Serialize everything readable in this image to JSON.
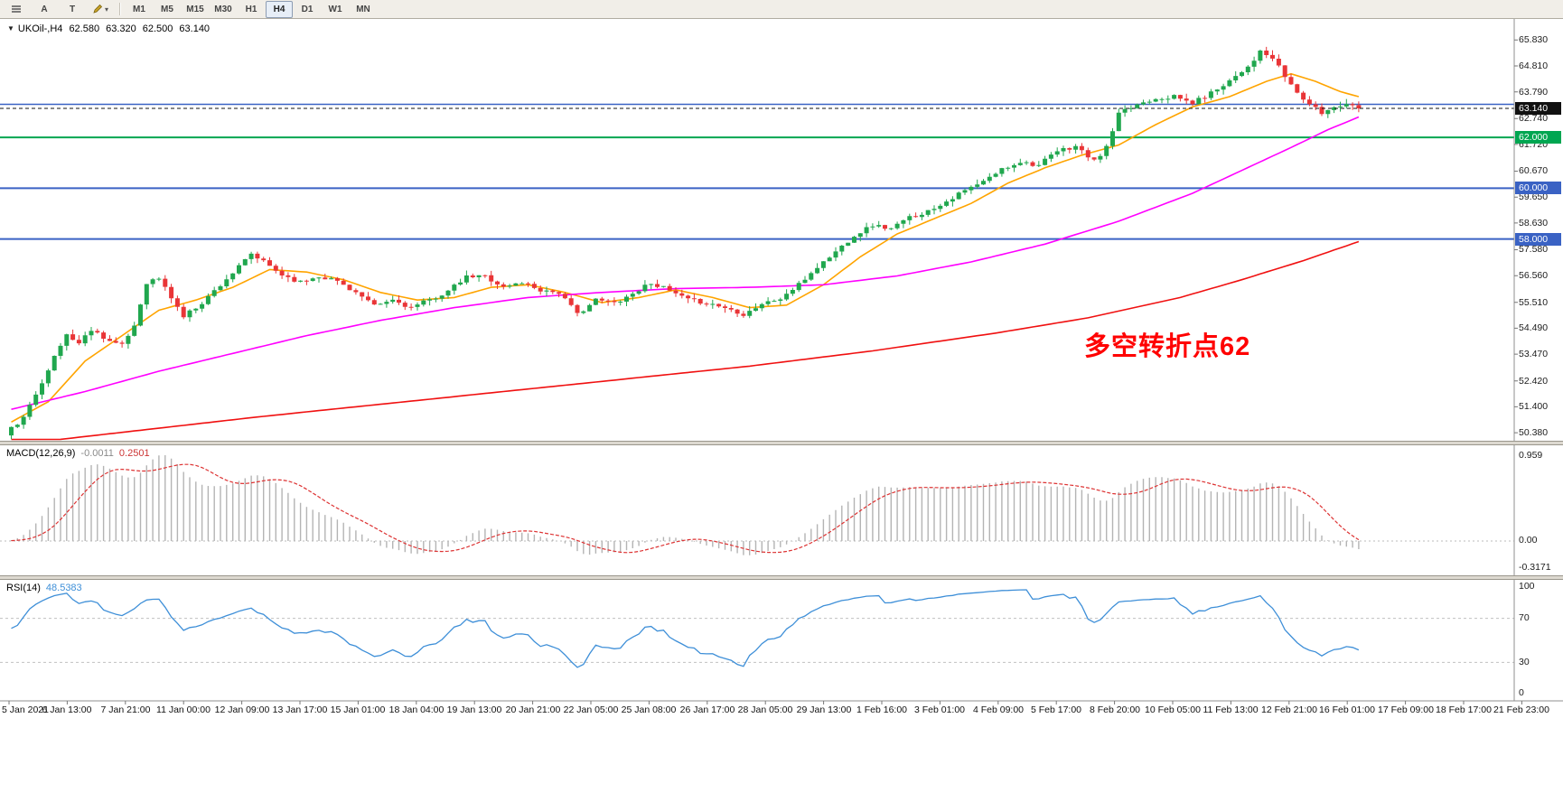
{
  "toolbar": {
    "tools": [
      {
        "label": "A"
      },
      {
        "label": "T"
      }
    ],
    "timeframes": [
      "M1",
      "M5",
      "M15",
      "M30",
      "H1",
      "H4",
      "D1",
      "W1",
      "MN"
    ],
    "active_timeframe": "H4"
  },
  "chart_title": {
    "symbol_period": "UKOil-,H4",
    "open": "62.580",
    "high": "63.320",
    "low": "62.500",
    "close": "63.140"
  },
  "annotation": "多空转折点62",
  "chart_data": {
    "type": "candlestick",
    "symbol": "UKOil",
    "timeframe": "H4",
    "price_range": {
      "max": 66.55,
      "min": 50.1
    },
    "price_axis_labels": [
      "65.830",
      "64.810",
      "63.790",
      "62.740",
      "61.720",
      "60.670",
      "59.650",
      "58.630",
      "57.580",
      "56.560",
      "55.510",
      "54.490",
      "53.470",
      "52.420",
      "51.400",
      "50.380"
    ],
    "hlines": [
      {
        "price": 63.3,
        "color": "#3A62C4",
        "width": 1.5,
        "tag": null
      },
      {
        "price": 62.0,
        "color": "#00A651",
        "width": 2,
        "tag": "62.000"
      },
      {
        "price": 60.0,
        "color": "#3A62C4",
        "width": 2,
        "tag": "60.000"
      },
      {
        "price": 58.0,
        "color": "#3A62C4",
        "width": 2,
        "tag": "58.000"
      }
    ],
    "current_price": {
      "value": 63.14,
      "tag": "63.140",
      "color": "#111111"
    },
    "candles": {
      "count": 220,
      "up_color": "#20A74E",
      "down_color": "#E93537",
      "close_anchors": [
        [
          0,
          50.55
        ],
        [
          2,
          50.95
        ],
        [
          4,
          51.9
        ],
        [
          6,
          52.9
        ],
        [
          9,
          54.25
        ],
        [
          11,
          53.9
        ],
        [
          13,
          54.45
        ],
        [
          16,
          54.0
        ],
        [
          18,
          53.8
        ],
        [
          20,
          54.6
        ],
        [
          22,
          56.3
        ],
        [
          24,
          56.45
        ],
        [
          26,
          55.7
        ],
        [
          28,
          54.95
        ],
        [
          31,
          55.5
        ],
        [
          34,
          56.2
        ],
        [
          37,
          56.9
        ],
        [
          39,
          57.4
        ],
        [
          41,
          57.1
        ],
        [
          44,
          56.6
        ],
        [
          47,
          56.3
        ],
        [
          50,
          56.55
        ],
        [
          53,
          56.35
        ],
        [
          56,
          55.9
        ],
        [
          59,
          55.35
        ],
        [
          62,
          55.6
        ],
        [
          65,
          55.3
        ],
        [
          68,
          55.6
        ],
        [
          71,
          55.95
        ],
        [
          74,
          56.5
        ],
        [
          77,
          56.55
        ],
        [
          80,
          56.1
        ],
        [
          83,
          56.3
        ],
        [
          86,
          56.0
        ],
        [
          89,
          55.9
        ],
        [
          92,
          55.05
        ],
        [
          95,
          55.6
        ],
        [
          98,
          55.5
        ],
        [
          101,
          55.85
        ],
        [
          104,
          56.3
        ],
        [
          107,
          55.95
        ],
        [
          110,
          55.6
        ],
        [
          113,
          55.5
        ],
        [
          116,
          55.3
        ],
        [
          119,
          55.05
        ],
        [
          122,
          55.45
        ],
        [
          125,
          55.65
        ],
        [
          128,
          56.2
        ],
        [
          131,
          56.9
        ],
        [
          134,
          57.5
        ],
        [
          137,
          58.15
        ],
        [
          140,
          58.55
        ],
        [
          143,
          58.4
        ],
        [
          146,
          58.85
        ],
        [
          149,
          59.1
        ],
        [
          152,
          59.5
        ],
        [
          155,
          59.9
        ],
        [
          158,
          60.25
        ],
        [
          161,
          60.75
        ],
        [
          164,
          61.05
        ],
        [
          167,
          60.9
        ],
        [
          170,
          61.45
        ],
        [
          173,
          61.65
        ],
        [
          176,
          61.05
        ],
        [
          178,
          61.6
        ],
        [
          180,
          62.9
        ],
        [
          183,
          63.3
        ],
        [
          186,
          63.55
        ],
        [
          189,
          63.6
        ],
        [
          192,
          63.35
        ],
        [
          195,
          63.75
        ],
        [
          198,
          64.25
        ],
        [
          201,
          64.8
        ],
        [
          203,
          65.35
        ],
        [
          205,
          65.1
        ],
        [
          207,
          64.4
        ],
        [
          209,
          63.75
        ],
        [
          211,
          63.3
        ],
        [
          213,
          62.95
        ],
        [
          215,
          63.2
        ],
        [
          217,
          63.35
        ],
        [
          219,
          63.14
        ]
      ]
    },
    "moving_averages": [
      {
        "name": "ma-fast-orange",
        "color": "#FFA400",
        "anchors": [
          [
            0,
            50.8
          ],
          [
            6,
            51.6
          ],
          [
            12,
            53.2
          ],
          [
            18,
            54.2
          ],
          [
            24,
            55.2
          ],
          [
            30,
            55.6
          ],
          [
            36,
            56.1
          ],
          [
            42,
            56.8
          ],
          [
            48,
            56.7
          ],
          [
            54,
            56.4
          ],
          [
            60,
            55.9
          ],
          [
            66,
            55.6
          ],
          [
            72,
            55.7
          ],
          [
            78,
            56.1
          ],
          [
            84,
            56.2
          ],
          [
            90,
            55.9
          ],
          [
            96,
            55.5
          ],
          [
            102,
            55.7
          ],
          [
            108,
            56.0
          ],
          [
            114,
            55.7
          ],
          [
            120,
            55.3
          ],
          [
            126,
            55.4
          ],
          [
            132,
            56.2
          ],
          [
            138,
            57.3
          ],
          [
            144,
            58.2
          ],
          [
            150,
            58.8
          ],
          [
            156,
            59.4
          ],
          [
            162,
            60.2
          ],
          [
            168,
            60.8
          ],
          [
            174,
            61.3
          ],
          [
            180,
            61.7
          ],
          [
            186,
            62.5
          ],
          [
            192,
            63.2
          ],
          [
            198,
            63.6
          ],
          [
            204,
            64.2
          ],
          [
            208,
            64.5
          ],
          [
            212,
            64.2
          ],
          [
            216,
            63.8
          ],
          [
            219,
            63.6
          ]
        ]
      },
      {
        "name": "ma-mid-magenta",
        "color": "#FF00FF",
        "anchors": [
          [
            0,
            51.3
          ],
          [
            12,
            52.0
          ],
          [
            24,
            52.8
          ],
          [
            36,
            53.5
          ],
          [
            48,
            54.2
          ],
          [
            60,
            54.8
          ],
          [
            72,
            55.3
          ],
          [
            84,
            55.7
          ],
          [
            96,
            55.9
          ],
          [
            108,
            56.05
          ],
          [
            120,
            56.1
          ],
          [
            132,
            56.2
          ],
          [
            144,
            56.55
          ],
          [
            156,
            57.1
          ],
          [
            168,
            57.8
          ],
          [
            180,
            58.7
          ],
          [
            192,
            59.8
          ],
          [
            200,
            60.7
          ],
          [
            208,
            61.6
          ],
          [
            214,
            62.3
          ],
          [
            219,
            62.8
          ]
        ]
      },
      {
        "name": "ma-slow-red",
        "color": "#F01010",
        "anchors": [
          [
            0,
            49.9
          ],
          [
            20,
            50.45
          ],
          [
            40,
            51.0
          ],
          [
            60,
            51.5
          ],
          [
            80,
            52.0
          ],
          [
            100,
            52.5
          ],
          [
            120,
            53.0
          ],
          [
            140,
            53.6
          ],
          [
            160,
            54.3
          ],
          [
            175,
            54.9
          ],
          [
            190,
            55.7
          ],
          [
            200,
            56.4
          ],
          [
            210,
            57.15
          ],
          [
            219,
            57.9
          ]
        ]
      }
    ],
    "macd": {
      "name": "MACD(12,26,9)",
      "main_value": "-0.0011",
      "signal_value": "0.2501",
      "fast": 12,
      "slow": 26,
      "signal": 9,
      "axis_labels": [
        "0.959",
        "0.00",
        "-0.3171"
      ],
      "hist_color": "#B4B4B4",
      "signal_color": "#DD3333"
    },
    "rsi": {
      "name": "RSI(14)",
      "value": "48.5383",
      "period": 14,
      "levels": [
        70,
        30
      ],
      "axis_labels": [
        "100",
        "70",
        "30",
        "0"
      ],
      "line_color": "#3E8FD8"
    },
    "time_axis_labels": [
      "5 Jan 2021",
      "6 Jan 13:00",
      "7 Jan 21:00",
      "11 Jan 00:00",
      "12 Jan 09:00",
      "13 Jan 17:00",
      "15 Jan 01:00",
      "18 Jan 04:00",
      "19 Jan 13:00",
      "20 Jan 21:00",
      "22 Jan 05:00",
      "25 Jan 08:00",
      "26 Jan 17:00",
      "28 Jan 05:00",
      "29 Jan 13:00",
      "1 Feb 16:00",
      "3 Feb 01:00",
      "4 Feb 09:00",
      "5 Feb 17:00",
      "8 Feb 20:00",
      "10 Feb 05:00",
      "11 Feb 13:00",
      "12 Feb 21:00",
      "16 Feb 01:00",
      "17 Feb 09:00",
      "18 Feb 17:00",
      "21 Feb 23:00"
    ]
  }
}
